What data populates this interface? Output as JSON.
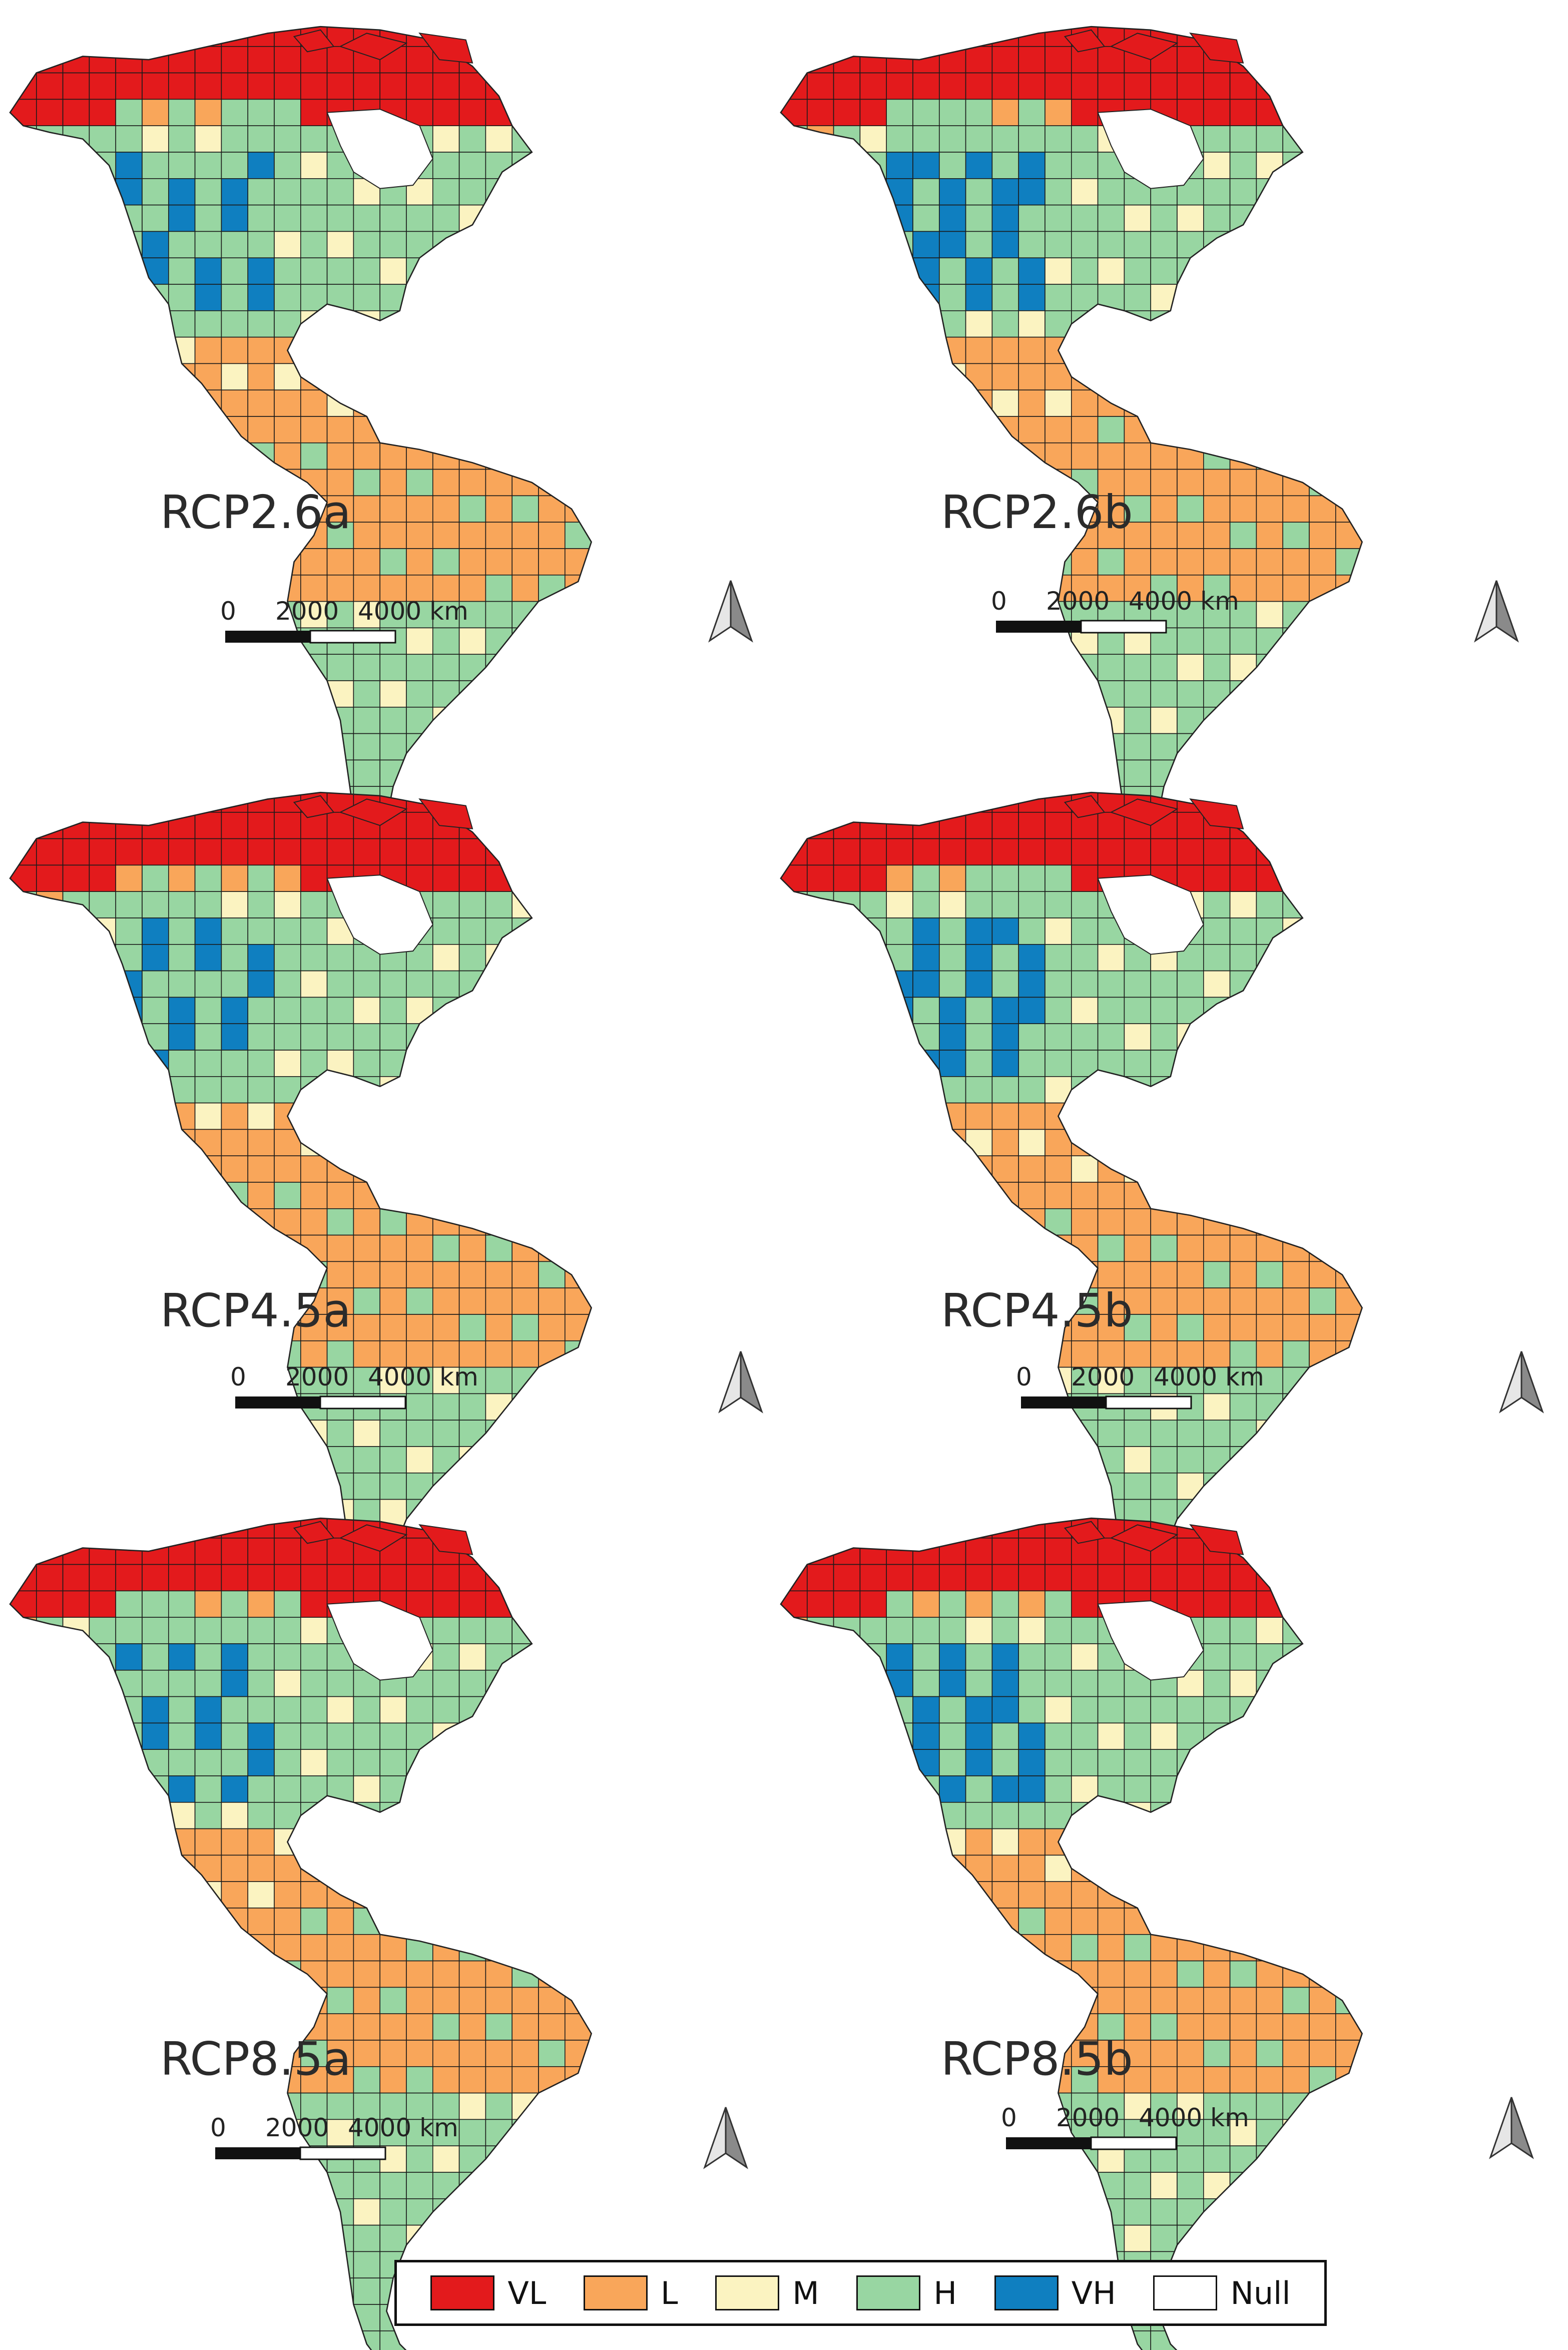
{
  "colors": {
    "VL": "#e31a1c",
    "L": "#f9a65a",
    "M": "#fbf3c1",
    "H": "#98d6a2",
    "VH": "#0f7fc0",
    "Null": "#ffffff"
  },
  "panels": [
    {
      "label": "RCP2.6a"
    },
    {
      "label": "RCP2.6b"
    },
    {
      "label": "RCP4.5a"
    },
    {
      "label": "RCP4.5b"
    },
    {
      "label": "RCP8.5a"
    },
    {
      "label": "RCP8.5b"
    }
  ],
  "scale_bar": {
    "labels": [
      "0",
      "2000",
      "4000 km"
    ]
  },
  "north_arrow": {
    "icon": "north-arrow-icon"
  },
  "legend": [
    {
      "key": "VL",
      "label": "VL"
    },
    {
      "key": "L",
      "label": "L"
    },
    {
      "key": "M",
      "label": "M"
    },
    {
      "key": "H",
      "label": "H"
    },
    {
      "key": "VH",
      "label": "VH"
    },
    {
      "key": "Null",
      "label": "Null"
    }
  ]
}
